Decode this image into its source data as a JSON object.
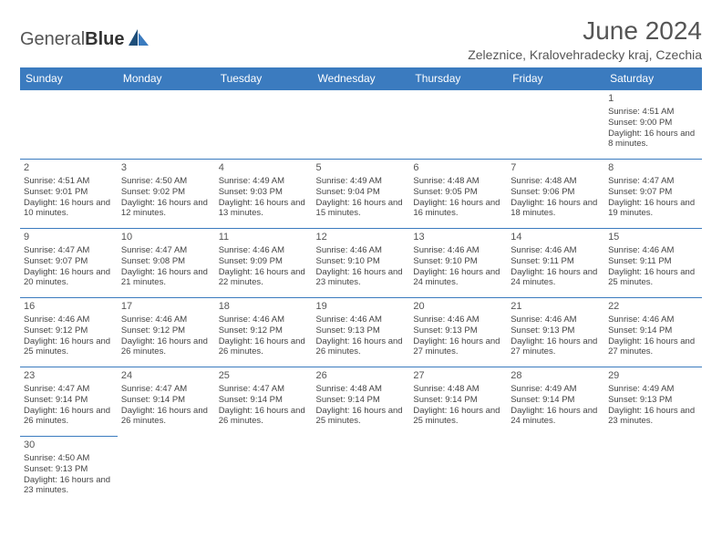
{
  "logo": {
    "part1": "General",
    "part2": "Blue"
  },
  "title": "June 2024",
  "location": "Zeleznice, Kralovehradecky kraj, Czechia",
  "colors": {
    "header_bg": "#3b7bbf",
    "header_text": "#ffffff",
    "cell_border": "#3b7bbf",
    "logo_tri_dark": "#1e4e79",
    "logo_tri_light": "#3b7bbf"
  },
  "day_headers": [
    "Sunday",
    "Monday",
    "Tuesday",
    "Wednesday",
    "Thursday",
    "Friday",
    "Saturday"
  ],
  "weeks": [
    [
      null,
      null,
      null,
      null,
      null,
      null,
      {
        "n": "1",
        "sr": "4:51 AM",
        "ss": "9:00 PM",
        "dl": "16 hours and 8 minutes."
      }
    ],
    [
      {
        "n": "2",
        "sr": "4:51 AM",
        "ss": "9:01 PM",
        "dl": "16 hours and 10 minutes."
      },
      {
        "n": "3",
        "sr": "4:50 AM",
        "ss": "9:02 PM",
        "dl": "16 hours and 12 minutes."
      },
      {
        "n": "4",
        "sr": "4:49 AM",
        "ss": "9:03 PM",
        "dl": "16 hours and 13 minutes."
      },
      {
        "n": "5",
        "sr": "4:49 AM",
        "ss": "9:04 PM",
        "dl": "16 hours and 15 minutes."
      },
      {
        "n": "6",
        "sr": "4:48 AM",
        "ss": "9:05 PM",
        "dl": "16 hours and 16 minutes."
      },
      {
        "n": "7",
        "sr": "4:48 AM",
        "ss": "9:06 PM",
        "dl": "16 hours and 18 minutes."
      },
      {
        "n": "8",
        "sr": "4:47 AM",
        "ss": "9:07 PM",
        "dl": "16 hours and 19 minutes."
      }
    ],
    [
      {
        "n": "9",
        "sr": "4:47 AM",
        "ss": "9:07 PM",
        "dl": "16 hours and 20 minutes."
      },
      {
        "n": "10",
        "sr": "4:47 AM",
        "ss": "9:08 PM",
        "dl": "16 hours and 21 minutes."
      },
      {
        "n": "11",
        "sr": "4:46 AM",
        "ss": "9:09 PM",
        "dl": "16 hours and 22 minutes."
      },
      {
        "n": "12",
        "sr": "4:46 AM",
        "ss": "9:10 PM",
        "dl": "16 hours and 23 minutes."
      },
      {
        "n": "13",
        "sr": "4:46 AM",
        "ss": "9:10 PM",
        "dl": "16 hours and 24 minutes."
      },
      {
        "n": "14",
        "sr": "4:46 AM",
        "ss": "9:11 PM",
        "dl": "16 hours and 24 minutes."
      },
      {
        "n": "15",
        "sr": "4:46 AM",
        "ss": "9:11 PM",
        "dl": "16 hours and 25 minutes."
      }
    ],
    [
      {
        "n": "16",
        "sr": "4:46 AM",
        "ss": "9:12 PM",
        "dl": "16 hours and 25 minutes."
      },
      {
        "n": "17",
        "sr": "4:46 AM",
        "ss": "9:12 PM",
        "dl": "16 hours and 26 minutes."
      },
      {
        "n": "18",
        "sr": "4:46 AM",
        "ss": "9:12 PM",
        "dl": "16 hours and 26 minutes."
      },
      {
        "n": "19",
        "sr": "4:46 AM",
        "ss": "9:13 PM",
        "dl": "16 hours and 26 minutes."
      },
      {
        "n": "20",
        "sr": "4:46 AM",
        "ss": "9:13 PM",
        "dl": "16 hours and 27 minutes."
      },
      {
        "n": "21",
        "sr": "4:46 AM",
        "ss": "9:13 PM",
        "dl": "16 hours and 27 minutes."
      },
      {
        "n": "22",
        "sr": "4:46 AM",
        "ss": "9:14 PM",
        "dl": "16 hours and 27 minutes."
      }
    ],
    [
      {
        "n": "23",
        "sr": "4:47 AM",
        "ss": "9:14 PM",
        "dl": "16 hours and 26 minutes."
      },
      {
        "n": "24",
        "sr": "4:47 AM",
        "ss": "9:14 PM",
        "dl": "16 hours and 26 minutes."
      },
      {
        "n": "25",
        "sr": "4:47 AM",
        "ss": "9:14 PM",
        "dl": "16 hours and 26 minutes."
      },
      {
        "n": "26",
        "sr": "4:48 AM",
        "ss": "9:14 PM",
        "dl": "16 hours and 25 minutes."
      },
      {
        "n": "27",
        "sr": "4:48 AM",
        "ss": "9:14 PM",
        "dl": "16 hours and 25 minutes."
      },
      {
        "n": "28",
        "sr": "4:49 AM",
        "ss": "9:14 PM",
        "dl": "16 hours and 24 minutes."
      },
      {
        "n": "29",
        "sr": "4:49 AM",
        "ss": "9:13 PM",
        "dl": "16 hours and 23 minutes."
      }
    ],
    [
      {
        "n": "30",
        "sr": "4:50 AM",
        "ss": "9:13 PM",
        "dl": "16 hours and 23 minutes."
      },
      null,
      null,
      null,
      null,
      null,
      null
    ]
  ],
  "labels": {
    "sunrise": "Sunrise: ",
    "sunset": "Sunset: ",
    "daylight": "Daylight: "
  }
}
